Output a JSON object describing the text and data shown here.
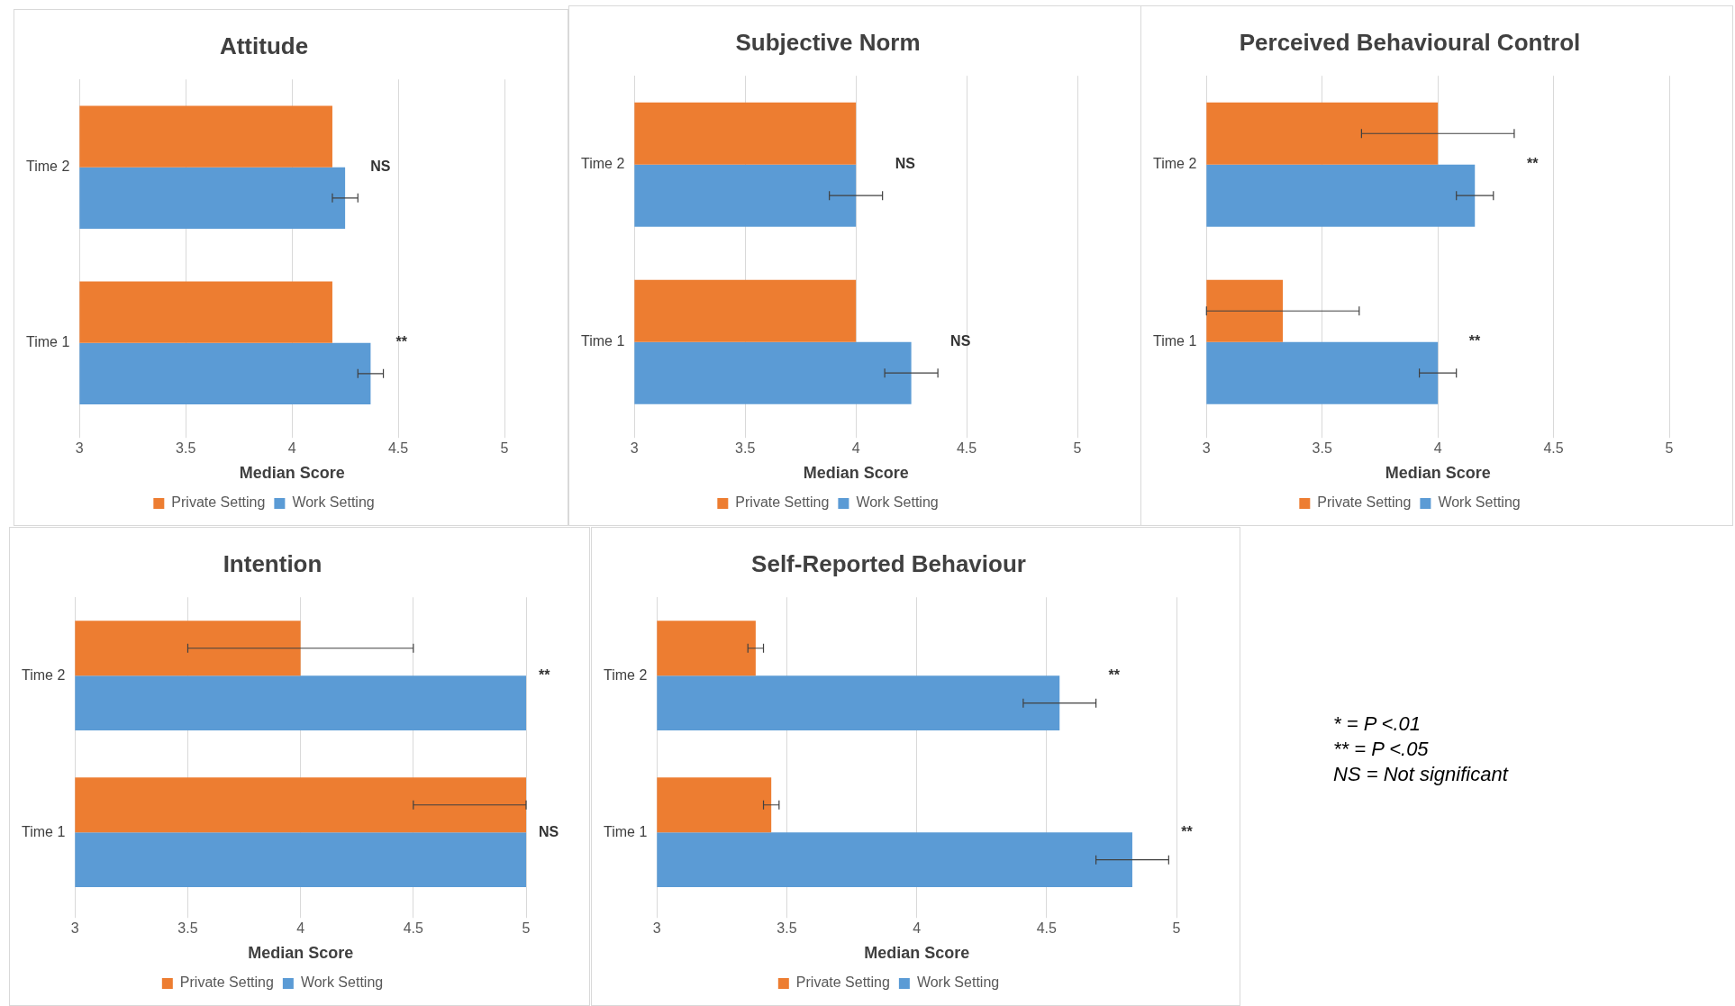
{
  "chart_data": [
    {
      "type": "bar",
      "orientation": "horizontal",
      "title": "Attitude",
      "xlabel": "Median Score",
      "categories": [
        "Time 2",
        "Time 1"
      ],
      "xlim": [
        3,
        5
      ],
      "xticks": [
        3,
        3.5,
        4,
        4.5,
        5
      ],
      "grid": "x",
      "legend": "bottom",
      "annotations": [
        "NS",
        "**"
      ],
      "series": [
        {
          "name": "Private Setting",
          "color": "#ed7d31",
          "values": [
            4.19,
            4.19
          ],
          "errors": [
            null,
            null
          ]
        },
        {
          "name": "Work Setting",
          "color": "#5b9bd5",
          "values": [
            4.25,
            4.37
          ],
          "errors": [
            0.06,
            0.06
          ]
        }
      ]
    },
    {
      "type": "bar",
      "orientation": "horizontal",
      "title": "Subjective Norm",
      "xlabel": "Median Score",
      "categories": [
        "Time 2",
        "Time 1"
      ],
      "xlim": [
        3,
        5
      ],
      "xticks": [
        3,
        3.5,
        4,
        4.5,
        5
      ],
      "grid": "x",
      "legend": "bottom",
      "annotations": [
        "NS",
        "NS"
      ],
      "series": [
        {
          "name": "Private Setting",
          "color": "#ed7d31",
          "values": [
            4,
            4
          ],
          "errors": [
            null,
            null
          ]
        },
        {
          "name": "Work Setting",
          "color": "#5b9bd5",
          "values": [
            4,
            4.25
          ],
          "errors": [
            0.12,
            0.12
          ]
        }
      ]
    },
    {
      "type": "bar",
      "orientation": "horizontal",
      "title": "Perceived Behavioural Control",
      "xlabel": "Median Score",
      "categories": [
        "Time 2",
        "Time 1"
      ],
      "xlim": [
        3,
        5
      ],
      "xticks": [
        3,
        3.5,
        4,
        4.5,
        5
      ],
      "grid": "x",
      "legend": "bottom",
      "annotations": [
        "**",
        "**"
      ],
      "series": [
        {
          "name": "Private Setting",
          "color": "#ed7d31",
          "values": [
            4,
            3.33
          ],
          "errors": [
            0.33,
            0.33
          ]
        },
        {
          "name": "Work Setting",
          "color": "#5b9bd5",
          "values": [
            4.16,
            4
          ],
          "errors": [
            0.08,
            0.08
          ]
        }
      ]
    },
    {
      "type": "bar",
      "orientation": "horizontal",
      "title": "Intention",
      "xlabel": "Median Score",
      "categories": [
        "Time 2",
        "Time 1"
      ],
      "xlim": [
        3,
        5
      ],
      "xticks": [
        3,
        3.5,
        4,
        4.5,
        5
      ],
      "grid": "x",
      "legend": "bottom",
      "annotations": [
        "**",
        "NS"
      ],
      "series": [
        {
          "name": "Private Setting",
          "color": "#ed7d31",
          "values": [
            4,
            5
          ],
          "errors": [
            0.5,
            [
              4.5,
              5
            ]
          ]
        },
        {
          "name": "Work Setting",
          "color": "#5b9bd5",
          "values": [
            5,
            5
          ],
          "errors": [
            null,
            null
          ]
        }
      ]
    },
    {
      "type": "bar",
      "orientation": "horizontal",
      "title": "Self-Reported Behaviour",
      "xlabel": "Median Score",
      "categories": [
        "Time 2",
        "Time 1"
      ],
      "xlim": [
        3,
        5
      ],
      "xticks": [
        3,
        3.5,
        4,
        4.5,
        5
      ],
      "grid": "x",
      "legend": "bottom",
      "annotations": [
        "**",
        "**"
      ],
      "series": [
        {
          "name": "Private Setting",
          "color": "#ed7d31",
          "values": [
            3.38,
            3.44
          ],
          "errors": [
            0.03,
            0.03
          ]
        },
        {
          "name": "Work Setting",
          "color": "#5b9bd5",
          "values": [
            4.55,
            4.83
          ],
          "errors": [
            0.14,
            0.14
          ]
        }
      ]
    },
    {
      "type": "other",
      "annotations": [
        "* = P <.01",
        "** = P <.05",
        "NS = Not significant"
      ]
    }
  ]
}
